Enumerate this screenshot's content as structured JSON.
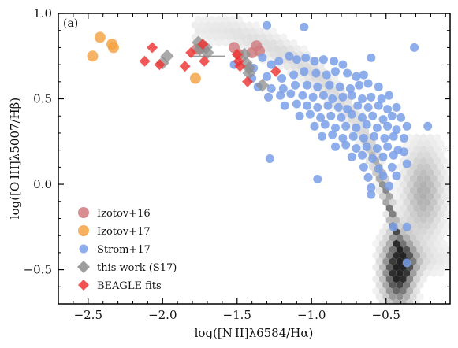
{
  "chart_data": {
    "type": "scatter",
    "panel_label": "(a)",
    "xlabel": "log([N II]λ6584/Hα)",
    "ylabel": "log([O III]λ5007/Hβ)",
    "xlim": [
      -2.7,
      -0.07
    ],
    "ylim": [
      -0.7,
      1.0
    ],
    "x_ticks": [
      -2.5,
      -2.0,
      -1.5,
      -1.0,
      -0.5
    ],
    "x_tick_labels": [
      "−2.5",
      "−2.0",
      "−1.5",
      "−1.0",
      "−0.5"
    ],
    "y_ticks": [
      -0.5,
      0.0,
      0.5,
      1.0
    ],
    "y_tick_labels": [
      "−0.5",
      "0.0",
      "0.5",
      "1.0"
    ],
    "legend_position": "lower-left",
    "background_density": "grey hexbin density of local galaxies along the excitation sequence",
    "series": [
      {
        "name": "Izotov+16",
        "marker": "circle",
        "color": "#d07a7e",
        "points": [
          [
            -1.77,
            0.79
          ],
          [
            -1.52,
            0.8
          ],
          [
            -1.49,
            0.76
          ],
          [
            -1.4,
            0.77
          ],
          [
            -1.37,
            0.81
          ],
          [
            -1.35,
            0.78
          ]
        ]
      },
      {
        "name": "Izotov+17",
        "marker": "circle",
        "color": "#f5a243",
        "points": [
          [
            -2.47,
            0.75
          ],
          [
            -2.42,
            0.86
          ],
          [
            -2.34,
            0.82
          ],
          [
            -2.33,
            0.8
          ],
          [
            -1.78,
            0.62
          ]
        ]
      },
      {
        "name": "Strom+17",
        "marker": "circle",
        "color": "#7a9fe8",
        "points": [
          [
            -1.3,
            0.93
          ],
          [
            -1.05,
            0.92
          ],
          [
            -0.6,
            0.74
          ],
          [
            -0.31,
            0.8
          ],
          [
            -1.52,
            0.7
          ],
          [
            -1.39,
            0.68
          ],
          [
            -1.33,
            0.74
          ],
          [
            -1.27,
            0.7
          ],
          [
            -1.22,
            0.72
          ],
          [
            -1.15,
            0.75
          ],
          [
            -1.1,
            0.73
          ],
          [
            -1.04,
            0.74
          ],
          [
            -0.98,
            0.72
          ],
          [
            -0.92,
            0.73
          ],
          [
            -0.85,
            0.72
          ],
          [
            -0.79,
            0.7
          ],
          [
            -1.4,
            0.62
          ],
          [
            -1.3,
            0.63
          ],
          [
            -1.2,
            0.62
          ],
          [
            -1.12,
            0.64
          ],
          [
            -1.05,
            0.66
          ],
          [
            -0.97,
            0.65
          ],
          [
            -0.9,
            0.64
          ],
          [
            -0.84,
            0.66
          ],
          [
            -0.76,
            0.65
          ],
          [
            -0.7,
            0.63
          ],
          [
            -0.65,
            0.64
          ],
          [
            -1.36,
            0.57
          ],
          [
            -1.27,
            0.56
          ],
          [
            -1.19,
            0.56
          ],
          [
            -1.11,
            0.58
          ],
          [
            -1.03,
            0.58
          ],
          [
            -0.96,
            0.57
          ],
          [
            -0.88,
            0.58
          ],
          [
            -0.81,
            0.57
          ],
          [
            -0.74,
            0.56
          ],
          [
            -0.68,
            0.58
          ],
          [
            -0.62,
            0.59
          ],
          [
            -0.55,
            0.57
          ],
          [
            -1.29,
            0.51
          ],
          [
            -1.21,
            0.52
          ],
          [
            -1.14,
            0.53
          ],
          [
            -1.06,
            0.52
          ],
          [
            -0.99,
            0.51
          ],
          [
            -0.92,
            0.52
          ],
          [
            -0.86,
            0.5
          ],
          [
            -0.79,
            0.51
          ],
          [
            -0.73,
            0.52
          ],
          [
            -0.66,
            0.5
          ],
          [
            -0.6,
            0.51
          ],
          [
            -0.53,
            0.5
          ],
          [
            -0.48,
            0.52
          ],
          [
            -1.18,
            0.46
          ],
          [
            -1.1,
            0.47
          ],
          [
            -1.03,
            0.46
          ],
          [
            -0.96,
            0.45
          ],
          [
            -0.89,
            0.46
          ],
          [
            -0.82,
            0.45
          ],
          [
            -0.76,
            0.44
          ],
          [
            -0.69,
            0.46
          ],
          [
            -0.62,
            0.45
          ],
          [
            -0.55,
            0.46
          ],
          [
            -0.49,
            0.44
          ],
          [
            -0.43,
            0.45
          ],
          [
            -1.08,
            0.4
          ],
          [
            -1.01,
            0.41
          ],
          [
            -0.94,
            0.39
          ],
          [
            -0.87,
            0.4
          ],
          [
            -0.8,
            0.39
          ],
          [
            -0.73,
            0.41
          ],
          [
            -0.66,
            0.39
          ],
          [
            -0.59,
            0.4
          ],
          [
            -0.52,
            0.38
          ],
          [
            -0.46,
            0.4
          ],
          [
            -0.4,
            0.39
          ],
          [
            -0.98,
            0.34
          ],
          [
            -0.91,
            0.35
          ],
          [
            -0.84,
            0.33
          ],
          [
            -0.77,
            0.34
          ],
          [
            -0.7,
            0.33
          ],
          [
            -0.63,
            0.35
          ],
          [
            -0.56,
            0.33
          ],
          [
            -0.49,
            0.34
          ],
          [
            -0.43,
            0.32
          ],
          [
            -0.36,
            0.34
          ],
          [
            -0.22,
            0.34
          ],
          [
            -0.93,
            0.28
          ],
          [
            -0.86,
            0.29
          ],
          [
            -0.79,
            0.27
          ],
          [
            -0.72,
            0.28
          ],
          [
            -0.65,
            0.27
          ],
          [
            -0.58,
            0.28
          ],
          [
            -0.51,
            0.27
          ],
          [
            -0.45,
            0.28
          ],
          [
            -0.38,
            0.27
          ],
          [
            -0.84,
            0.22
          ],
          [
            -0.77,
            0.23
          ],
          [
            -0.7,
            0.21
          ],
          [
            -0.63,
            0.22
          ],
          [
            -0.56,
            0.21
          ],
          [
            -0.49,
            0.22
          ],
          [
            -0.42,
            0.2
          ],
          [
            -0.73,
            0.16
          ],
          [
            -0.66,
            0.17
          ],
          [
            -0.59,
            0.15
          ],
          [
            -0.52,
            0.16
          ],
          [
            -0.45,
            0.17
          ],
          [
            -0.38,
            0.19
          ],
          [
            -1.28,
            0.15
          ],
          [
            -0.65,
            0.1
          ],
          [
            -0.55,
            0.09
          ],
          [
            -0.46,
            0.1
          ],
          [
            -0.36,
            0.12
          ],
          [
            -0.62,
            0.04
          ],
          [
            -0.52,
            0.05
          ],
          [
            -0.43,
            0.05
          ],
          [
            -0.96,
            0.03
          ],
          [
            -0.6,
            -0.02
          ],
          [
            -0.48,
            -0.01
          ],
          [
            -0.6,
            -0.06
          ],
          [
            -0.45,
            -0.25
          ],
          [
            -0.36,
            -0.25
          ],
          [
            -0.36,
            -0.46
          ]
        ]
      },
      {
        "name": "this work (S17)",
        "marker": "diamond",
        "color": "#8c8c8c",
        "points": [
          [
            -2.0,
            0.71
          ],
          [
            -1.97,
            0.75
          ],
          [
            -1.76,
            0.83
          ],
          [
            -1.75,
            0.79
          ],
          [
            -1.71,
            0.8
          ],
          [
            -1.7,
            0.77
          ],
          [
            -1.45,
            0.76
          ],
          [
            -1.44,
            0.71
          ],
          [
            -1.42,
            0.68
          ],
          [
            -1.42,
            0.65
          ],
          [
            -1.33,
            0.58
          ]
        ],
        "error_bars_x": [
          [
            -1.82,
            -1.58
          ]
        ]
      },
      {
        "name": "BEAGLE fits",
        "marker": "diamond",
        "color": "#ee3333",
        "points": [
          [
            -2.12,
            0.72
          ],
          [
            -2.07,
            0.8
          ],
          [
            -2.02,
            0.7
          ],
          [
            -1.85,
            0.69
          ],
          [
            -1.81,
            0.77
          ],
          [
            -1.73,
            0.82
          ],
          [
            -1.72,
            0.72
          ],
          [
            -1.5,
            0.76
          ],
          [
            -1.49,
            0.72
          ],
          [
            -1.48,
            0.69
          ],
          [
            -1.43,
            0.6
          ],
          [
            -1.24,
            0.66
          ]
        ]
      }
    ],
    "legend_order": [
      "Izotov+16",
      "Izotov+17",
      "Strom+17",
      "this work (S17)",
      "BEAGLE fits"
    ]
  }
}
